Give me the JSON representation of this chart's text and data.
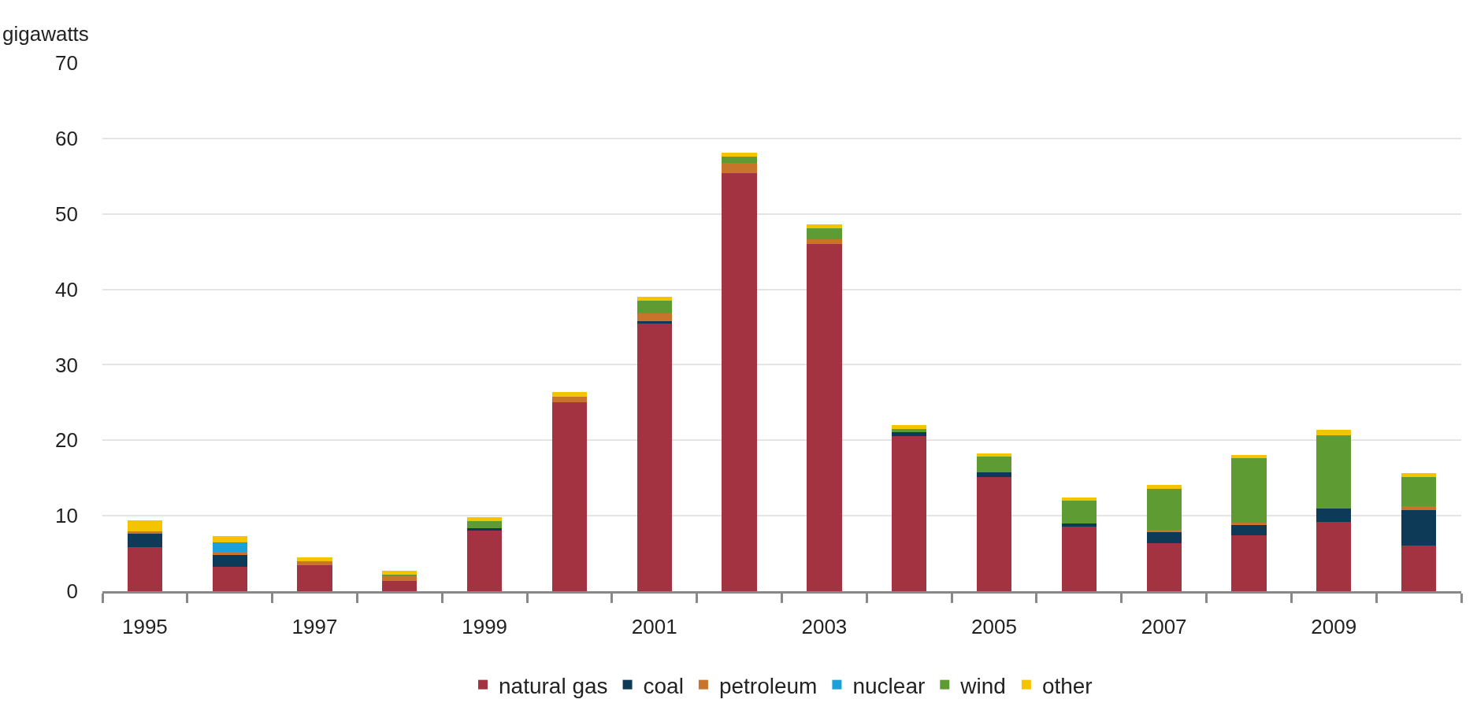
{
  "chart_data": {
    "type": "bar",
    "stacked": true,
    "ylabel": "gigawatts",
    "categories": [
      "1995",
      null,
      "1997",
      null,
      "1999",
      null,
      "2001",
      null,
      "2003",
      null,
      "2005",
      null,
      "2007",
      null,
      "2009",
      null
    ],
    "series": [
      {
        "name": "natural gas",
        "color": "#a33340",
        "values": [
          5.8,
          3.2,
          3.4,
          1.4,
          8.0,
          25.0,
          35.5,
          55.4,
          46.0,
          20.5,
          15.1,
          8.6,
          6.4,
          7.4,
          9.2,
          6.1
        ]
      },
      {
        "name": "coal",
        "color": "#0d3a56",
        "values": [
          1.8,
          1.6,
          0,
          0,
          0.3,
          0,
          0.3,
          0,
          0,
          0.6,
          0.7,
          0.4,
          1.5,
          1.4,
          1.8,
          4.6
        ]
      },
      {
        "name": "petroleum",
        "color": "#c8742b",
        "values": [
          0.3,
          0.4,
          0.6,
          0.6,
          0,
          0.8,
          1.0,
          1.3,
          0.6,
          0,
          0,
          0,
          0.2,
          0.3,
          0,
          0.6
        ]
      },
      {
        "name": "nuclear",
        "color": "#1ba0d8",
        "values": [
          0,
          1.3,
          0,
          0,
          0,
          0,
          0,
          0,
          0,
          0,
          0,
          0,
          0,
          0,
          0,
          0
        ]
      },
      {
        "name": "wind",
        "color": "#5e9c33",
        "values": [
          0,
          0,
          0,
          0.2,
          1.0,
          0,
          1.7,
          0.9,
          1.5,
          0.4,
          2.0,
          3.0,
          5.5,
          8.5,
          9.7,
          3.8
        ]
      },
      {
        "name": "other",
        "color": "#f5c400",
        "values": [
          1.5,
          0.8,
          0.5,
          0.5,
          0.5,
          0.6,
          0.5,
          0.5,
          0.5,
          0.5,
          0.5,
          0.4,
          0.5,
          0.5,
          0.7,
          0.5
        ]
      }
    ],
    "ylim": [
      0,
      70
    ],
    "yticks": [
      0,
      10,
      20,
      30,
      40,
      50,
      60,
      70
    ],
    "grid": "y",
    "legend": "bottom"
  }
}
